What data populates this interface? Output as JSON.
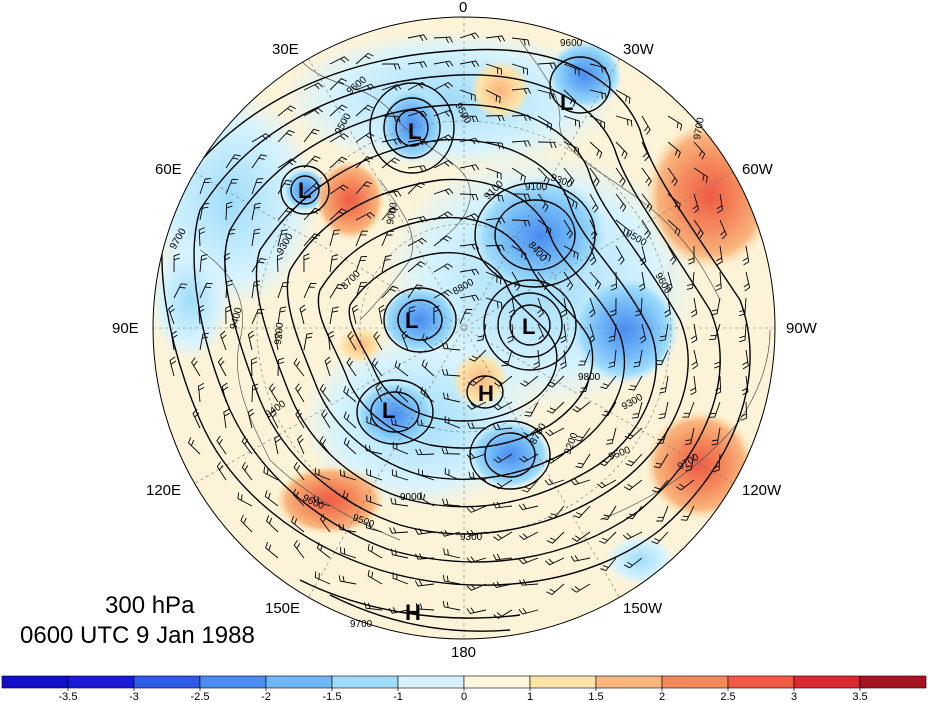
{
  "title": {
    "level": "300 hPa",
    "time": "0600 UTC 9 Jan 1988"
  },
  "longitude_labels": [
    {
      "id": "lon-0",
      "text": "0"
    },
    {
      "id": "lon-30w",
      "text": "30W"
    },
    {
      "id": "lon-60w",
      "text": "60W"
    },
    {
      "id": "lon-90w",
      "text": "90W"
    },
    {
      "id": "lon-120w",
      "text": "120W"
    },
    {
      "id": "lon-150w",
      "text": "150W"
    },
    {
      "id": "lon-180",
      "text": "180"
    },
    {
      "id": "lon-150e",
      "text": "150E"
    },
    {
      "id": "lon-120e",
      "text": "120E"
    },
    {
      "id": "lon-90e",
      "text": "90E"
    },
    {
      "id": "lon-60e",
      "text": "60E"
    },
    {
      "id": "lon-30e",
      "text": "30E"
    }
  ],
  "pressure_centers": [
    {
      "kind": "L"
    },
    {
      "kind": "L"
    },
    {
      "kind": "L"
    },
    {
      "kind": "L"
    },
    {
      "kind": "L"
    },
    {
      "kind": "L"
    },
    {
      "kind": "H"
    },
    {
      "kind": "H"
    }
  ],
  "contour_labels": [
    "9600",
    "9600",
    "9500",
    "9500",
    "9700",
    "9100",
    "9300",
    "9000",
    "8800",
    "8700",
    "9300",
    "9400",
    "9200",
    "9700",
    "9500",
    "9600",
    "9100",
    "9300",
    "9000",
    "9600",
    "9700",
    "9500",
    "9800",
    "9400",
    "8700",
    "9300",
    "8400",
    "9500",
    "9700",
    "9200"
  ],
  "colorbar": {
    "ticks": [
      "-3.5",
      "-3",
      "-2.5",
      "-2",
      "-1.5",
      "-1",
      "0",
      "1",
      "1.5",
      "2",
      "2.5",
      "3",
      "3.5"
    ],
    "colors": [
      "#1a1ad4",
      "#2e5be6",
      "#4a8cf0",
      "#6fb7f7",
      "#9fdcfb",
      "#d6f3fd",
      "#fdf5dc",
      "#fde3a8",
      "#f9b57d",
      "#f48a5c",
      "#ef5b45",
      "#d92a2f",
      "#a81322"
    ]
  },
  "colors": {
    "contour": "#000000",
    "background": "#ffffff",
    "ocean": "#fdf3d8"
  }
}
